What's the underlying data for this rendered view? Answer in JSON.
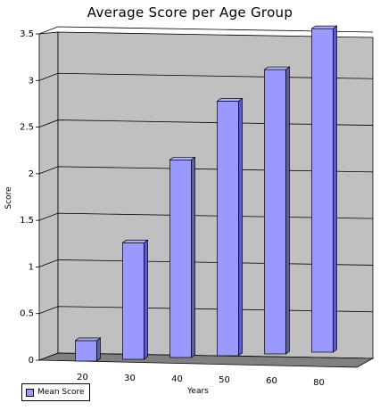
{
  "chart_data": {
    "type": "bar",
    "title": "Average Score per Age Group",
    "xlabel": "Years",
    "ylabel": "Score",
    "categories": [
      "20",
      "30",
      "40",
      "50",
      "60",
      "80"
    ],
    "series": [
      {
        "name": "Mean Score",
        "values": [
          0.22,
          1.25,
          2.12,
          2.73,
          3.05,
          3.47
        ]
      }
    ],
    "ylim": [
      0,
      3.5
    ],
    "yticks": [
      "0",
      "0.5",
      "1",
      "1.5",
      "2",
      "2.5",
      "3",
      "3.5"
    ],
    "grid": true,
    "legend": "bottom-left",
    "colors": {
      "bar_front": "#9999ff",
      "bar_side": "#5c5cc0",
      "bar_top": "#b3b3ff",
      "wall": "#c0c0c0",
      "floor": "#808080",
      "gridline": "#000000"
    }
  }
}
